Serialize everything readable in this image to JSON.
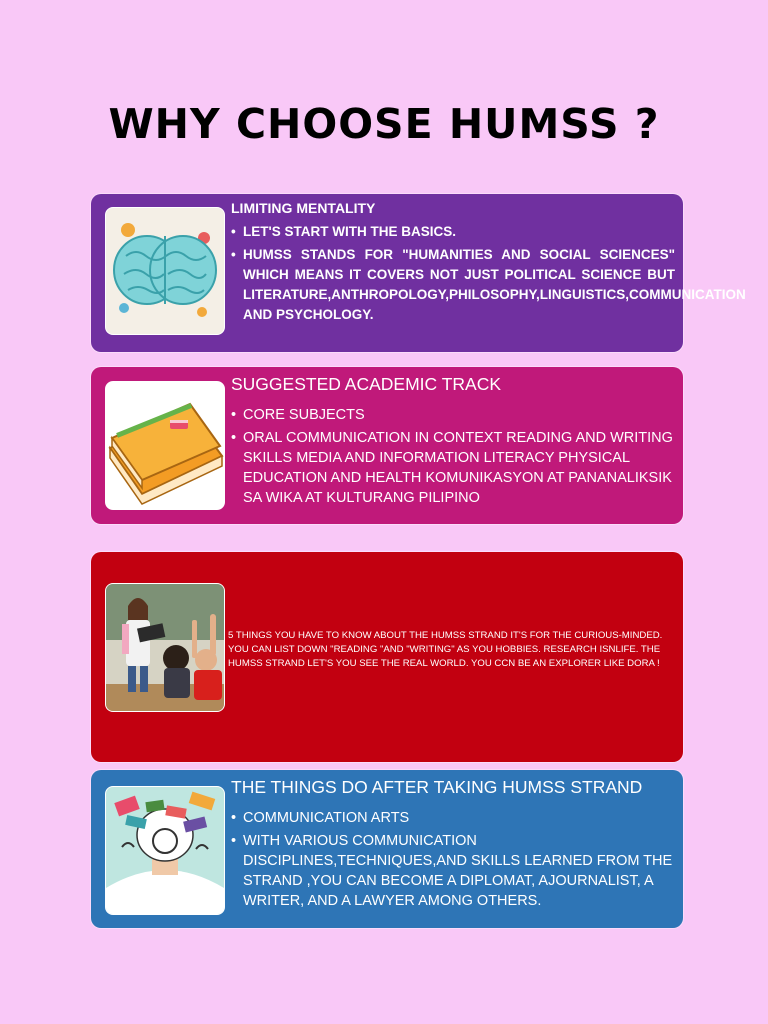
{
  "title": "WHY CHOOSE HUMSS ?",
  "colors": {
    "background": "#f9c8f7",
    "card_purple": "#7030a0",
    "card_magenta": "#c0197a",
    "card_red": "#c20010",
    "card_blue": "#2e75b6"
  },
  "cards": {
    "limiting": {
      "heading": "LIMITING MENTALITY",
      "image": "brain-illustration",
      "bullets": [
        "LET'S START WITH THE BASICS.",
        "HUMSS STANDS FOR \"HUMANITIES AND SOCIAL SCIENCES\" WHICH MEANS IT COVERS NOT JUST POLITICAL SCIENCE BUT LITERATURE,ANTHROPOLOGY,PHILOSOPHY,LINGUISTICS,COMMUNICATION AND PSYCHOLOGY."
      ]
    },
    "academic": {
      "heading": "SUGGESTED ACADEMIC TRACK",
      "image": "books-illustration",
      "bullets": [
        "CORE SUBJECTS",
        "ORAL COMMUNICATION IN CONTEXT READING AND WRITING SKILLS MEDIA AND INFORMATION LITERACY PHYSICAL EDUCATION AND HEALTH KOMUNIKASYON AT PANANALIKSIK SA WIKA AT KULTURANG PILIPINO"
      ]
    },
    "things_to_know": {
      "image": "classroom-photo",
      "text": "5 THINGS YOU HAVE TO KNOW ABOUT  THE HUMSS STRAND IT'S FOR THE CURIOUS-MINDED. YOU CAN LIST DOWN \"READING \"AND \"WRITING\" AS YOU HOBBIES. RESEARCH ISNLIFE. THE HUMSS STRAND LET'S YOU SEE THE REAL WORLD. YOU CCN BE AN EXPLORER LIKE DORA !"
    },
    "after": {
      "heading": "THE THINGS DO AFTER TAKING HUMSS STRAND",
      "image": "head-illustration",
      "bullets": [
        "COMMUNICATION ARTS",
        "WITH VARIOUS COMMUNICATION DISCIPLINES,TECHNIQUES,AND SKILLS LEARNED FROM THE STRAND ,YOU CAN BECOME A DIPLOMAT, AJOURNALIST, A WRITER, AND A LAWYER AMONG OTHERS."
      ]
    }
  }
}
